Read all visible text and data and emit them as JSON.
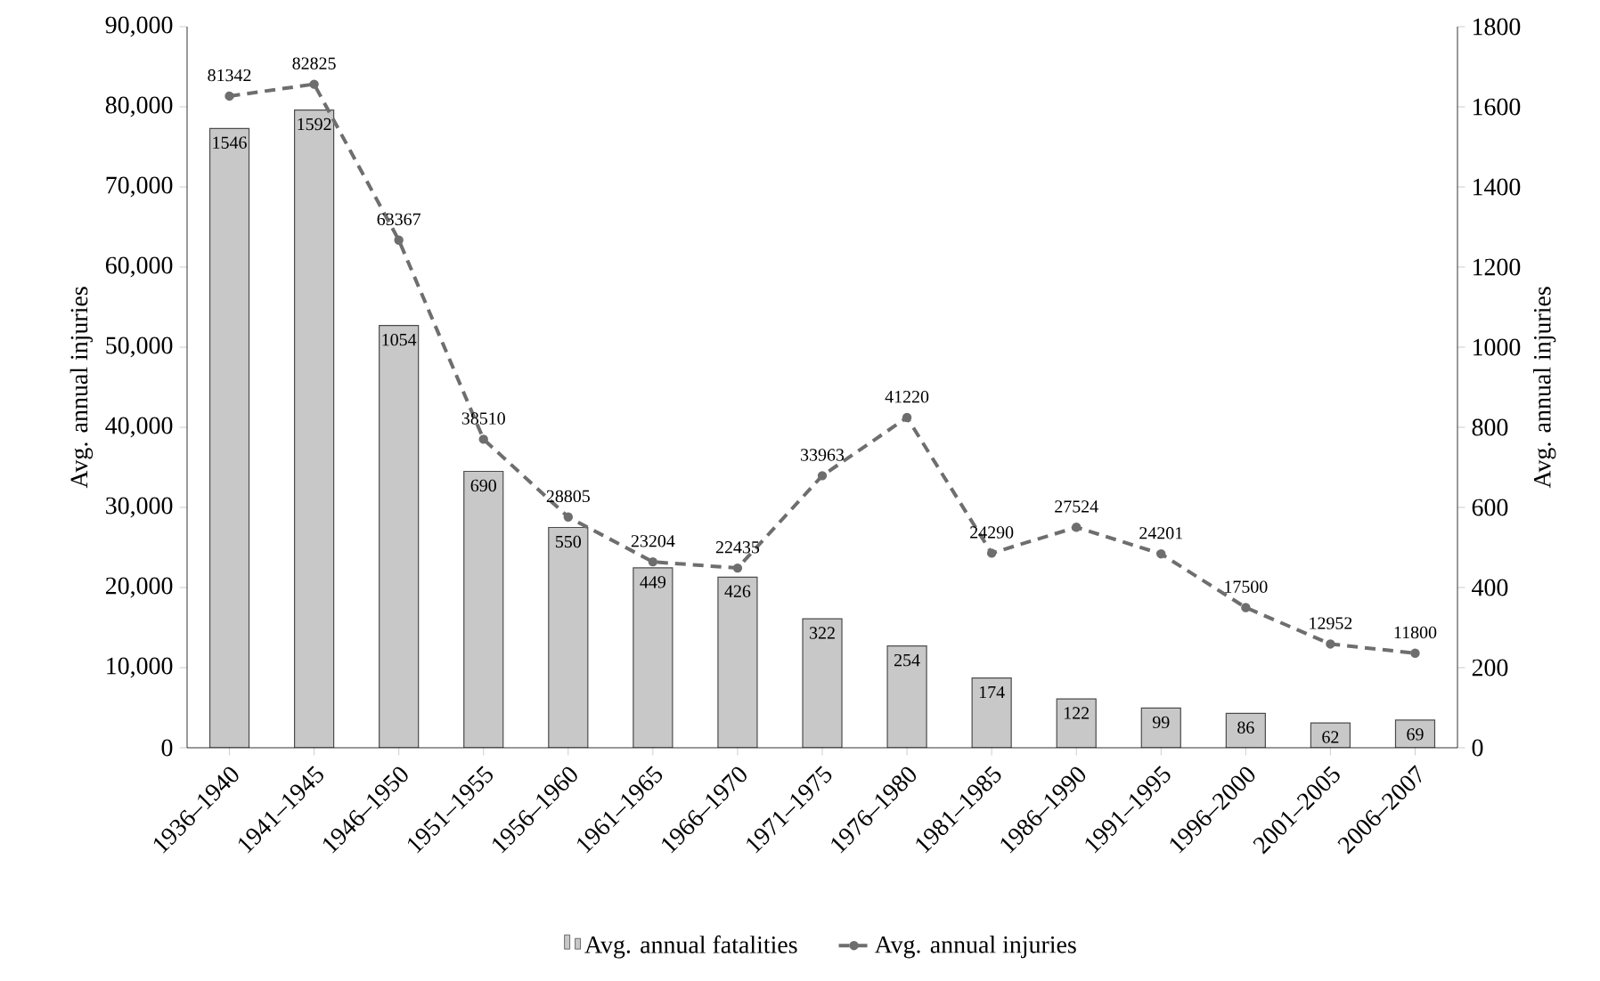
{
  "chart_data": {
    "type": "bar",
    "categories": [
      "1936–1940",
      "1941–1945",
      "1946–1950",
      "1951–1955",
      "1956–1960",
      "1961–1965",
      "1966–1970",
      "1971–1975",
      "1976–1980",
      "1981–1985",
      "1986–1990",
      "1991–1995",
      "1996–2000",
      "2001–2005",
      "2006–2007"
    ],
    "ylabel": "Avg. annual injuries",
    "y2label": "Avg. annual injuries",
    "ylim": [
      0,
      90000
    ],
    "yticks": [
      {
        "value": 0,
        "label": "0"
      },
      {
        "value": 10000,
        "label": "10,000"
      },
      {
        "value": 20000,
        "label": "20,000"
      },
      {
        "value": 30000,
        "label": "30,000"
      },
      {
        "value": 40000,
        "label": "40,000"
      },
      {
        "value": 50000,
        "label": "50,000"
      },
      {
        "value": 60000,
        "label": "60,000"
      },
      {
        "value": 70000,
        "label": "70,000"
      },
      {
        "value": 80000,
        "label": "80,000"
      },
      {
        "value": 90000,
        "label": "90,000"
      }
    ],
    "y2lim": [
      0,
      1800
    ],
    "y2ticks": [
      0,
      200,
      400,
      600,
      800,
      1000,
      1200,
      1400,
      1600,
      1800
    ],
    "data_labels": true,
    "legend": "bottom",
    "series": [
      {
        "name": "Avg. annual fatalities",
        "axis": "y2",
        "color": "#c8c8c8",
        "values": [
          1546,
          1592,
          1054,
          690,
          550,
          449,
          426,
          322,
          254,
          174,
          122,
          99,
          86,
          62,
          69
        ]
      },
      {
        "name": "Avg. annual injuries",
        "type": "line",
        "color": "#6e6e6e",
        "marker": "circle",
        "line_style": "dashed",
        "values": [
          81342,
          82825,
          63367,
          38510,
          28805,
          23204,
          22435,
          33963,
          41220,
          24290,
          27524,
          24201,
          17500,
          12952,
          11800
        ]
      }
    ]
  }
}
